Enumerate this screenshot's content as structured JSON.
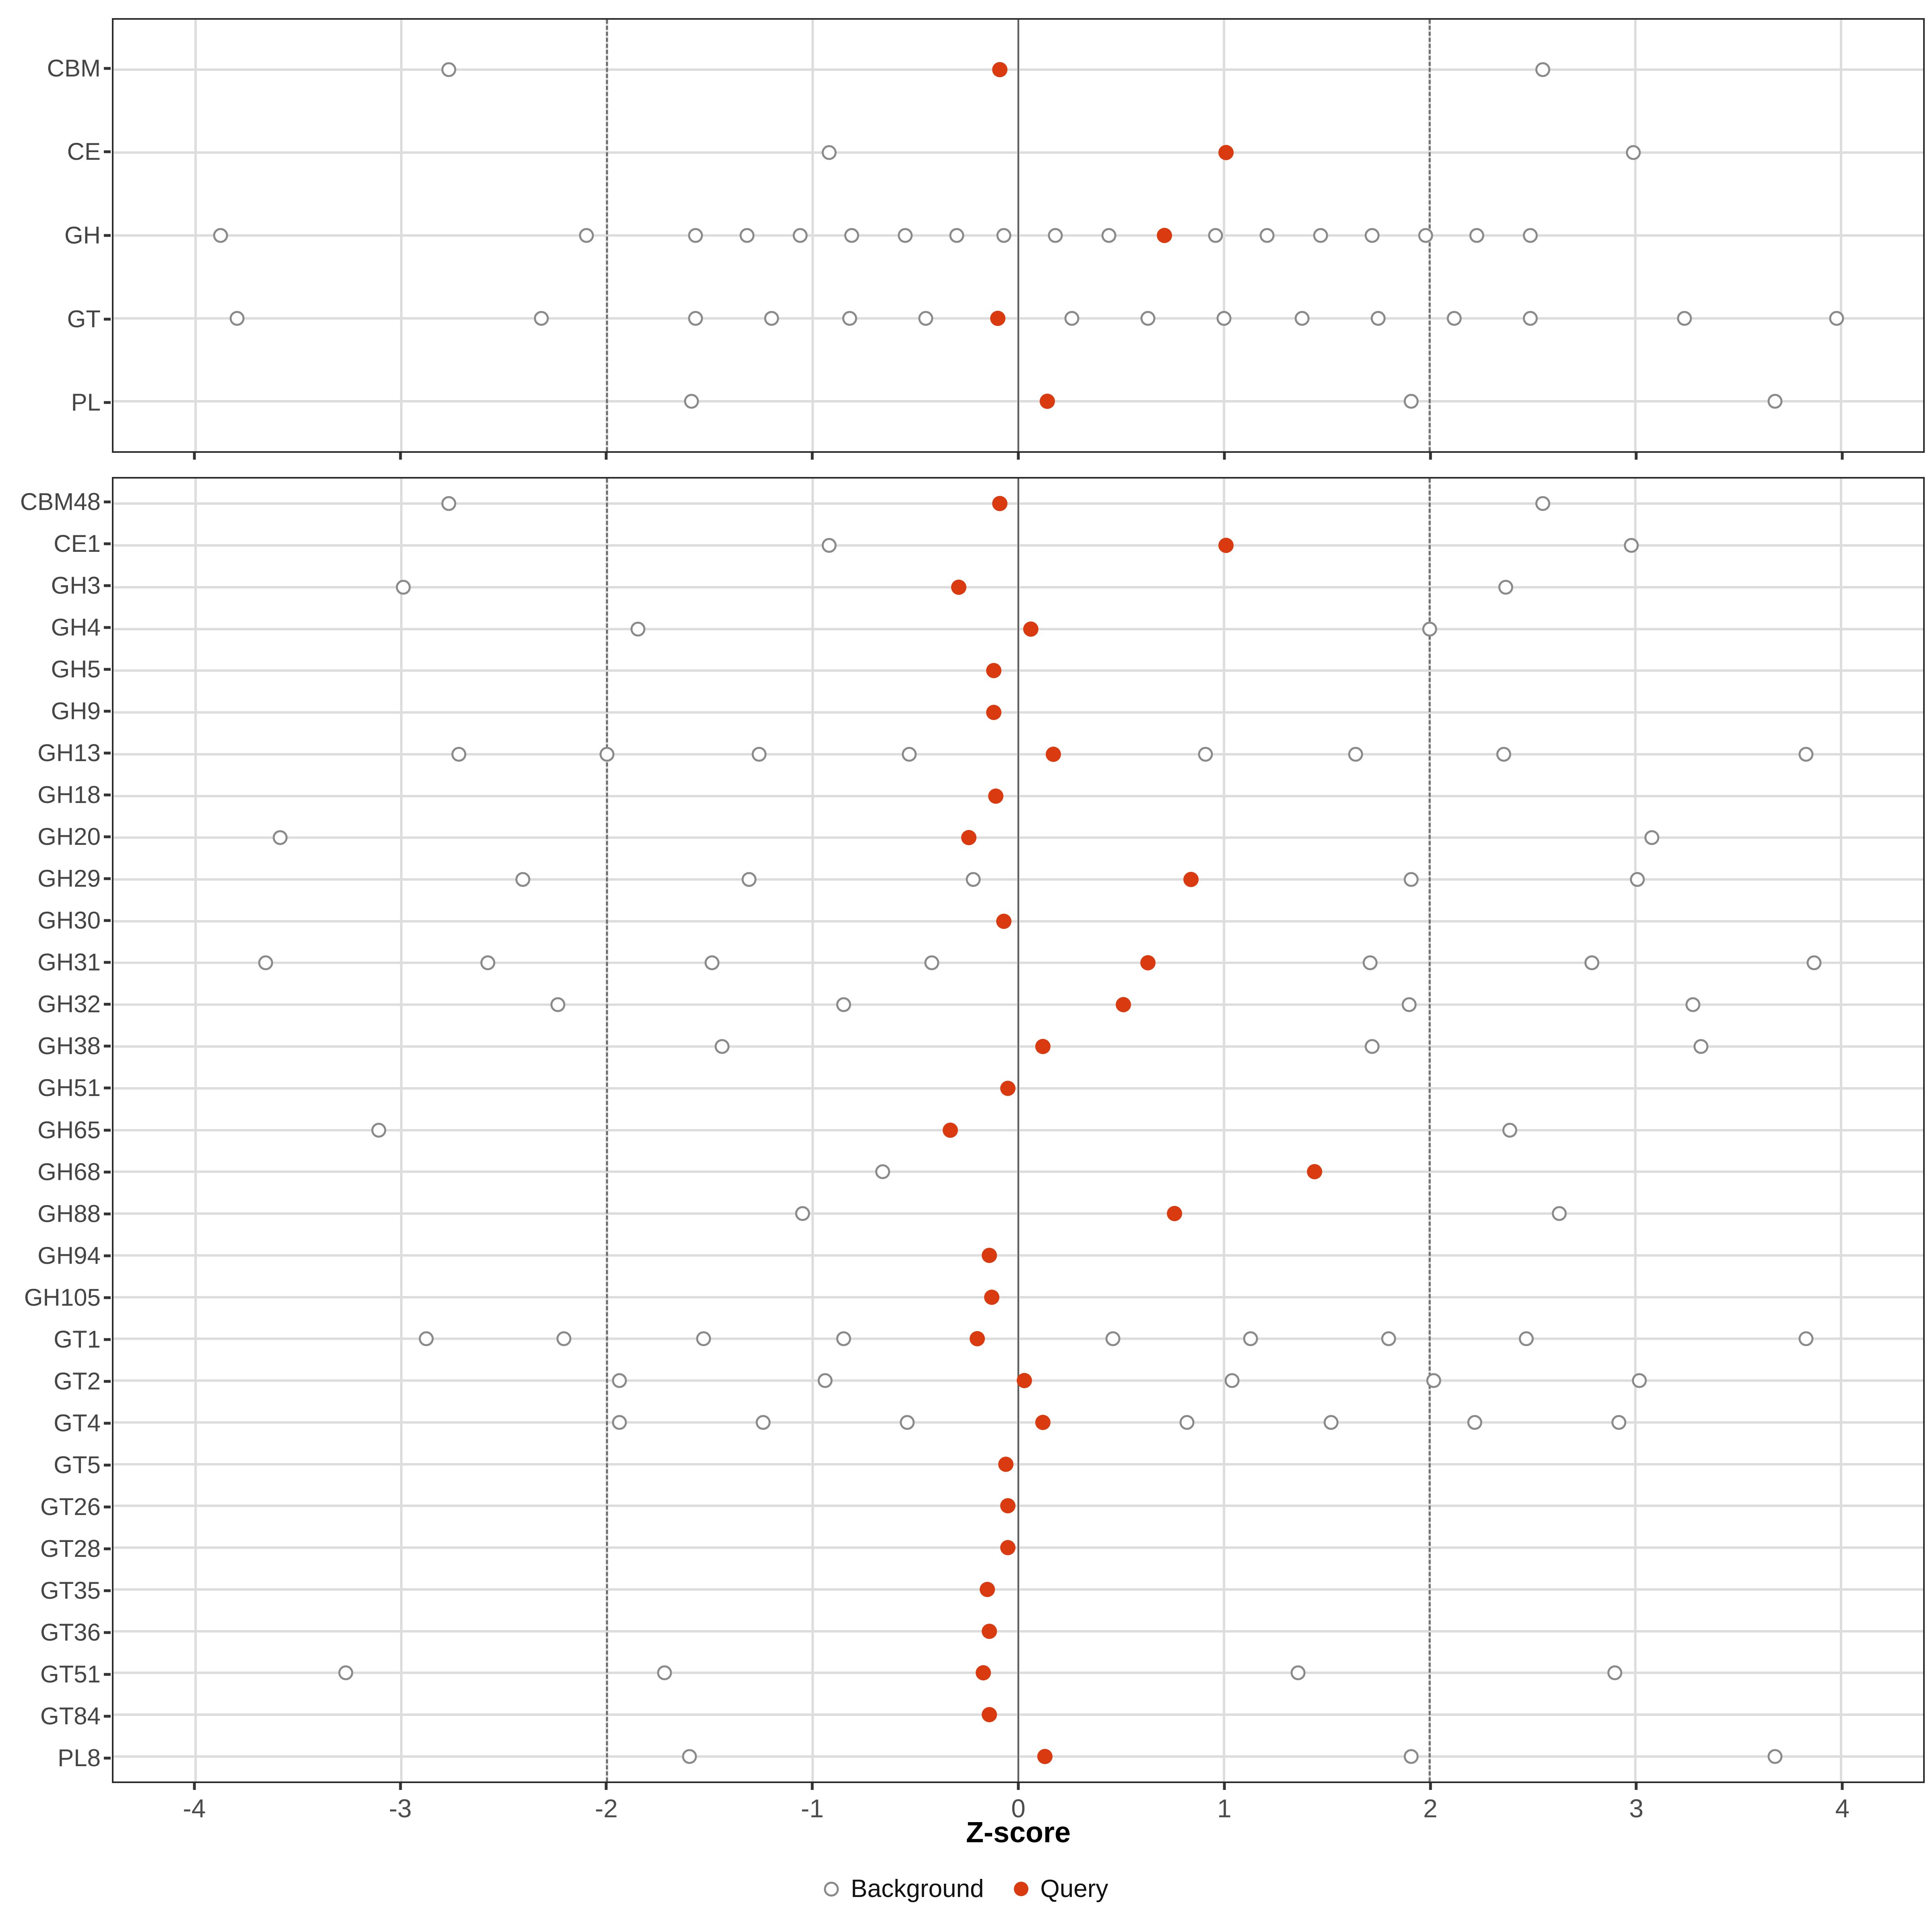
{
  "chart_data": {
    "type": "scatter",
    "title": "",
    "xlabel": "Z-score",
    "ylabel": "",
    "xlim": [
      -4.4,
      4.4
    ],
    "x_ticks": [
      -4,
      -3,
      -2,
      -1,
      0,
      1,
      2,
      3,
      4
    ],
    "x_tick_labels": [
      "-4",
      "-3",
      "-2",
      "-1",
      "0",
      "1",
      "2",
      "3",
      "4"
    ],
    "grid": "major-only",
    "legend": [
      "Background",
      "Query"
    ],
    "legend_position": "bottom",
    "reference_lines": {
      "solid": [
        0
      ],
      "dashed": [
        -2,
        2
      ]
    },
    "colors": {
      "query": "#d93a10",
      "background_stroke": "#8a8a8a",
      "grid": "#dddddd",
      "panel_border": "#2b2b2b",
      "reference": "#5f5f5f",
      "axis_text": "#4d4d4d",
      "category_text": "#454545"
    },
    "panels": [
      {
        "name": "families",
        "rows": [
          {
            "label": "CBM",
            "background": [
              -2.77,
              2.55
            ],
            "query": -0.09
          },
          {
            "label": "CE",
            "background": [
              -0.92,
              2.99
            ],
            "query": 1.01
          },
          {
            "label": "GH",
            "background": [
              -3.88,
              -2.1,
              -1.57,
              -1.32,
              -1.06,
              -0.81,
              -0.55,
              -0.3,
              -0.07,
              0.18,
              0.44,
              0.96,
              1.21,
              1.47,
              1.72,
              1.98,
              2.23,
              2.49
            ],
            "query": 0.71
          },
          {
            "label": "GT",
            "background": [
              -3.8,
              -2.32,
              -1.57,
              -1.2,
              -0.82,
              -0.45,
              0.26,
              0.63,
              1.0,
              1.38,
              1.75,
              2.12,
              2.49,
              3.24,
              3.98
            ],
            "query": -0.1
          },
          {
            "label": "PL",
            "background": [
              -1.59,
              1.91,
              3.68
            ],
            "query": 0.14
          }
        ]
      },
      {
        "name": "subfamilies",
        "rows": [
          {
            "label": "CBM48",
            "background": [
              -2.77,
              2.55
            ],
            "query": -0.09
          },
          {
            "label": "CE1",
            "background": [
              -0.92,
              2.98
            ],
            "query": 1.01
          },
          {
            "label": "GH3",
            "background": [
              -2.99,
              2.37
            ],
            "query": -0.29
          },
          {
            "label": "GH4",
            "background": [
              -1.85,
              2.0
            ],
            "query": 0.06
          },
          {
            "label": "GH5",
            "background": [],
            "query": -0.12
          },
          {
            "label": "GH9",
            "background": [],
            "query": -0.12
          },
          {
            "label": "GH13",
            "background": [
              -2.72,
              -2.0,
              -1.26,
              -0.53,
              0.91,
              1.64,
              2.36,
              3.83
            ],
            "query": 0.17
          },
          {
            "label": "GH18",
            "background": [],
            "query": -0.11
          },
          {
            "label": "GH20",
            "background": [
              -3.59,
              3.08
            ],
            "query": -0.24
          },
          {
            "label": "GH29",
            "background": [
              -2.41,
              -1.31,
              -0.22,
              1.91,
              3.01
            ],
            "query": 0.84
          },
          {
            "label": "GH30",
            "background": [],
            "query": -0.07
          },
          {
            "label": "GH31",
            "background": [
              -3.66,
              -2.58,
              -1.49,
              -0.42,
              1.71,
              2.79,
              3.87
            ],
            "query": 0.63
          },
          {
            "label": "GH32",
            "background": [
              -2.24,
              -0.85,
              1.9,
              3.28
            ],
            "query": 0.51
          },
          {
            "label": "GH38",
            "background": [
              -1.44,
              1.72,
              3.32
            ],
            "query": 0.12
          },
          {
            "label": "GH51",
            "background": [],
            "query": -0.05
          },
          {
            "label": "GH65",
            "background": [
              -3.11,
              2.39
            ],
            "query": -0.33
          },
          {
            "label": "GH68",
            "background": [
              -0.66
            ],
            "query": 1.44
          },
          {
            "label": "GH88",
            "background": [
              -1.05,
              2.63
            ],
            "query": 0.76
          },
          {
            "label": "GH94",
            "background": [],
            "query": -0.14
          },
          {
            "label": "GH105",
            "background": [],
            "query": -0.13
          },
          {
            "label": "GT1",
            "background": [
              -2.88,
              -2.21,
              -1.53,
              -0.85,
              0.46,
              1.13,
              1.8,
              2.47,
              3.83
            ],
            "query": -0.2
          },
          {
            "label": "GT2",
            "background": [
              -1.94,
              -0.94,
              1.04,
              2.02,
              3.02
            ],
            "query": 0.03
          },
          {
            "label": "GT4",
            "background": [
              -1.94,
              -1.24,
              -0.54,
              0.82,
              1.52,
              2.22,
              2.92
            ],
            "query": 0.12
          },
          {
            "label": "GT5",
            "background": [],
            "query": -0.06
          },
          {
            "label": "GT26",
            "background": [],
            "query": -0.05
          },
          {
            "label": "GT28",
            "background": [],
            "query": -0.05
          },
          {
            "label": "GT35",
            "background": [],
            "query": -0.15
          },
          {
            "label": "GT36",
            "background": [],
            "query": -0.14
          },
          {
            "label": "GT51",
            "background": [
              -3.27,
              -1.72,
              1.36,
              2.9
            ],
            "query": -0.17
          },
          {
            "label": "GT84",
            "background": [],
            "query": -0.14
          },
          {
            "label": "PL8",
            "background": [
              -1.6,
              1.91,
              3.68
            ],
            "query": 0.13
          }
        ]
      }
    ]
  }
}
